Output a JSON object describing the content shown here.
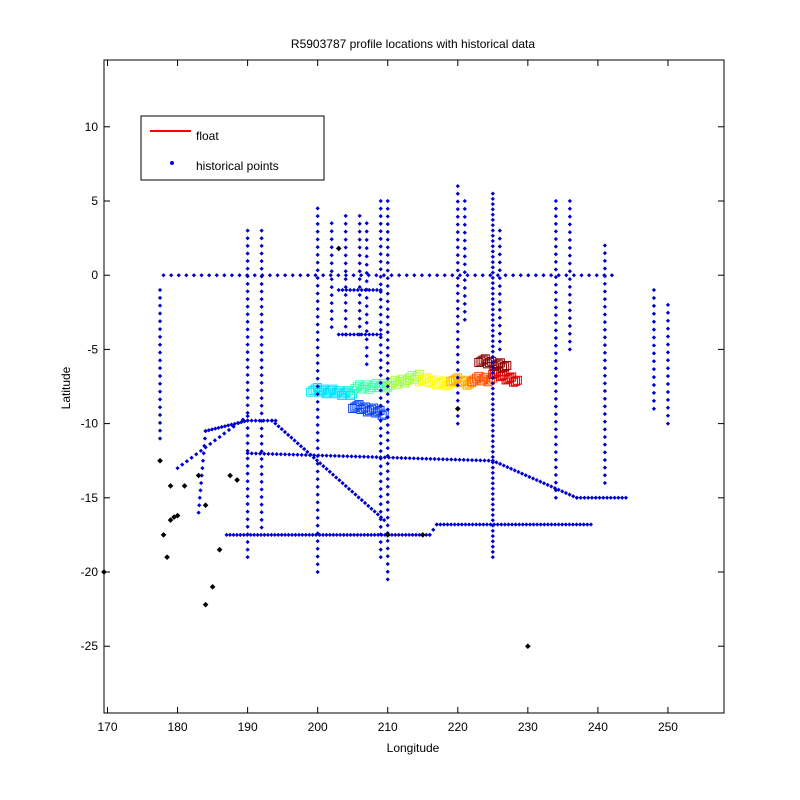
{
  "chart_data": {
    "type": "scatter",
    "title": "R5903787 profile locations with historical data",
    "xlabel": "Longitude",
    "ylabel": "Latitude",
    "xlim": [
      169.5,
      258
    ],
    "ylim": [
      -29.5,
      14.5
    ],
    "xticks": [
      170,
      180,
      190,
      200,
      210,
      220,
      230,
      240,
      250
    ],
    "yticks": [
      10,
      5,
      0,
      -5,
      -10,
      -15,
      -20,
      -25
    ],
    "grid": false,
    "legend_position": "top-left",
    "legend": [
      {
        "label": "float",
        "marker": "line",
        "color": "#ff0000"
      },
      {
        "label": "historical points",
        "marker": "dot",
        "color": "#0000cc"
      }
    ],
    "historical_color": "#0000cc",
    "historical_segments": [
      {
        "x0": 178,
        "y0": 0,
        "x1": 242,
        "y1": 0,
        "n": 60
      },
      {
        "x0": 190,
        "y0": 3,
        "x1": 190,
        "y1": -19,
        "n": 44
      },
      {
        "x0": 192,
        "y0": 3,
        "x1": 192,
        "y1": -17,
        "n": 40
      },
      {
        "x0": 200,
        "y0": 4.5,
        "x1": 200,
        "y1": -20,
        "n": 48
      },
      {
        "x0": 202,
        "y0": 3.5,
        "x1": 202,
        "y1": -3.5,
        "n": 14
      },
      {
        "x0": 204,
        "y0": 4,
        "x1": 204,
        "y1": -4,
        "n": 16
      },
      {
        "x0": 206,
        "y0": 4,
        "x1": 206,
        "y1": -4,
        "n": 16
      },
      {
        "x0": 207,
        "y0": 3.5,
        "x1": 207,
        "y1": -6,
        "n": 18
      },
      {
        "x0": 209,
        "y0": 5,
        "x1": 209,
        "y1": -19,
        "n": 48
      },
      {
        "x0": 210,
        "y0": 5,
        "x1": 210,
        "y1": -20.5,
        "n": 50
      },
      {
        "x0": 220,
        "y0": 6,
        "x1": 220,
        "y1": -10,
        "n": 32
      },
      {
        "x0": 221,
        "y0": 5,
        "x1": 221,
        "y1": -3,
        "n": 16
      },
      {
        "x0": 225,
        "y0": 5.5,
        "x1": 225,
        "y1": -19,
        "n": 70
      },
      {
        "x0": 226,
        "y0": 3,
        "x1": 226,
        "y1": -5,
        "n": 16
      },
      {
        "x0": 234,
        "y0": 5,
        "x1": 234,
        "y1": -15,
        "n": 40
      },
      {
        "x0": 236,
        "y0": 5,
        "x1": 236,
        "y1": -5,
        "n": 20
      },
      {
        "x0": 241,
        "y0": 2,
        "x1": 241,
        "y1": -14,
        "n": 32
      },
      {
        "x0": 248,
        "y0": -1,
        "x1": 248,
        "y1": -9,
        "n": 16
      },
      {
        "x0": 250,
        "y0": -2,
        "x1": 250,
        "y1": -10,
        "n": 16
      },
      {
        "x0": 177.5,
        "y0": -1,
        "x1": 177.5,
        "y1": -11,
        "n": 20
      },
      {
        "x0": 190,
        "y0": -12,
        "x1": 225,
        "y1": -12.5,
        "n": 60
      },
      {
        "x0": 225,
        "y0": -12.5,
        "x1": 237,
        "y1": -15,
        "n": 24
      },
      {
        "x0": 237,
        "y0": -15,
        "x1": 244,
        "y1": -15,
        "n": 14
      },
      {
        "x0": 187,
        "y0": -17.5,
        "x1": 216,
        "y1": -17.5,
        "n": 60
      },
      {
        "x0": 216,
        "y0": -17.5,
        "x1": 217,
        "y1": -16.8,
        "n": 3
      },
      {
        "x0": 217,
        "y0": -16.8,
        "x1": 239,
        "y1": -16.8,
        "n": 44
      },
      {
        "x0": 183,
        "y0": -16,
        "x1": 184,
        "y1": -10.5,
        "n": 12
      },
      {
        "x0": 184,
        "y0": -10.5,
        "x1": 190,
        "y1": -9.8,
        "n": 14
      },
      {
        "x0": 190,
        "y0": -9.8,
        "x1": 194,
        "y1": -9.8,
        "n": 8
      },
      {
        "x0": 193.5,
        "y0": -9.8,
        "x1": 209.5,
        "y1": -16.5,
        "n": 36
      },
      {
        "x0": 180,
        "y0": -13,
        "x1": 190,
        "y1": -9.5,
        "n": 16
      },
      {
        "x0": 203,
        "y0": -4,
        "x1": 209,
        "y1": -4,
        "n": 12
      },
      {
        "x0": 203,
        "y0": -1,
        "x1": 209,
        "y1": -1,
        "n": 12
      }
    ],
    "black_points": [
      [
        177.5,
        -12.5
      ],
      [
        179,
        -14.2
      ],
      [
        181,
        -14.2
      ],
      [
        183,
        -13.5
      ],
      [
        178,
        -17.5
      ],
      [
        178.5,
        -19
      ],
      [
        179,
        -16.5
      ],
      [
        179.5,
        -16.3
      ],
      [
        180,
        -16.2
      ],
      [
        184,
        -15.5
      ],
      [
        186,
        -18.5
      ],
      [
        185,
        -21
      ],
      [
        184,
        -22.2
      ],
      [
        187.5,
        -13.5
      ],
      [
        188.5,
        -13.8
      ],
      [
        203,
        1.8
      ],
      [
        220,
        -9
      ],
      [
        210,
        -17.5
      ],
      [
        215,
        -17.5
      ],
      [
        230,
        -25
      ],
      [
        169.5,
        -20
      ]
    ],
    "float_segments": [
      {
        "x0": 199,
        "y0": -7.7,
        "x1": 205,
        "y1": -8.0,
        "n": 20,
        "color": "#00e0ff"
      },
      {
        "x0": 205,
        "y0": -8.8,
        "x1": 209.5,
        "y1": -9.3,
        "n": 16,
        "color": "#0040ff"
      },
      {
        "x0": 205,
        "y0": -7.6,
        "x1": 210,
        "y1": -7.4,
        "n": 16,
        "color": "#40ffb0"
      },
      {
        "x0": 210,
        "y0": -7.4,
        "x1": 214.5,
        "y1": -6.8,
        "n": 14,
        "color": "#a0ff40"
      },
      {
        "x0": 214.5,
        "y0": -7.0,
        "x1": 219,
        "y1": -7.4,
        "n": 14,
        "color": "#ffff00"
      },
      {
        "x0": 219,
        "y0": -7.0,
        "x1": 222,
        "y1": -7.3,
        "n": 10,
        "color": "#ffb000"
      },
      {
        "x0": 222,
        "y0": -7.0,
        "x1": 225,
        "y1": -7.0,
        "n": 10,
        "color": "#ff5000"
      },
      {
        "x0": 225,
        "y0": -6.5,
        "x1": 228.5,
        "y1": -7.2,
        "n": 14,
        "color": "#e00000"
      },
      {
        "x0": 223,
        "y0": -5.7,
        "x1": 227,
        "y1": -6.2,
        "n": 14,
        "color": "#8b0000"
      }
    ]
  }
}
